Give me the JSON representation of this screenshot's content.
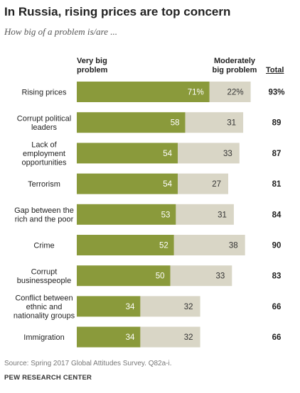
{
  "header": {
    "title": "In Russia, rising prices are top concern",
    "subtitle": "How big of a problem is/are ...",
    "col_very_big": [
      "Very big",
      "problem"
    ],
    "col_moderately_big": [
      "Moderately",
      "big problem"
    ],
    "col_total": "Total"
  },
  "footer": {
    "source": "Source: Spring 2017 Global Attitudes Survey. Q82a-i.",
    "org": "PEW RESEARCH CENTER"
  },
  "chart_data": {
    "type": "bar",
    "orientation": "horizontal",
    "stacked": true,
    "title": "In Russia, rising prices are top concern",
    "subtitle": "How big of a problem is/are ...",
    "categories": [
      [
        "Rising prices"
      ],
      [
        "Corrupt political",
        "leaders"
      ],
      [
        "Lack of",
        "employment",
        "opportunities"
      ],
      [
        "Terrorism"
      ],
      [
        "Gap between the",
        "rich and the poor"
      ],
      [
        "Crime"
      ],
      [
        "Corrupt",
        "businesspeople"
      ],
      [
        "Conflict between",
        "ethnic and",
        "nationality groups"
      ],
      [
        "Immigration"
      ]
    ],
    "series": [
      {
        "name": "Very big problem",
        "color": "#8a9a3b",
        "values": [
          71,
          58,
          54,
          54,
          53,
          52,
          50,
          34,
          34
        ],
        "labels": [
          "71%",
          "58",
          "54",
          "54",
          "53",
          "52",
          "50",
          "34",
          "34"
        ]
      },
      {
        "name": "Moderately big problem",
        "color": "#d9d6c6",
        "values": [
          22,
          31,
          33,
          27,
          31,
          38,
          33,
          32,
          32
        ],
        "labels": [
          "22%",
          "31",
          "33",
          "27",
          "31",
          "38",
          "33",
          "32",
          "32"
        ]
      }
    ],
    "totals": [
      "93%",
      "89",
      "87",
      "81",
      "84",
      "90",
      "83",
      "66",
      "66"
    ],
    "xlim": [
      0,
      100
    ]
  }
}
